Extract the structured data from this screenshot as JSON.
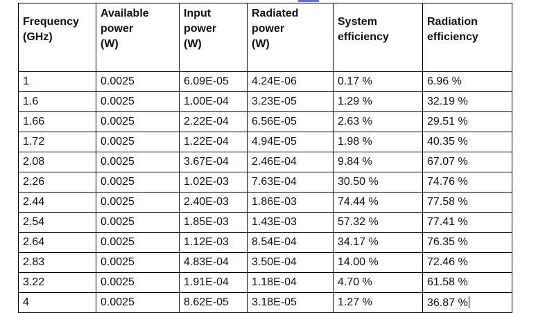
{
  "table": {
    "headers": [
      [
        "Frequency",
        "(GHz)"
      ],
      [
        "Available",
        "power",
        "(W)"
      ],
      [
        "Input",
        "power",
        "(W)"
      ],
      [
        "Radiated",
        "power",
        "(W)"
      ],
      [
        "System",
        "efficiency"
      ],
      [
        "Radiation",
        "efficiency"
      ]
    ],
    "rows": [
      [
        "1",
        "0.0025",
        "6.09E-05",
        "4.24E-06",
        "0.17 %",
        "6.96 %"
      ],
      [
        "1.6",
        "0.0025",
        "1.00E-04",
        "3.23E-05",
        "1.29 %",
        "32.19 %"
      ],
      [
        "1.66",
        "0.0025",
        "2.22E-04",
        "6.56E-05",
        "2.63 %",
        "29.51 %"
      ],
      [
        "1.72",
        "0.0025",
        "1.22E-04",
        "4.94E-05",
        "1.98 %",
        "40.35 %"
      ],
      [
        "2.08",
        "0.0025",
        "3.67E-04",
        "2.46E-04",
        "9.84 %",
        "67.07 %"
      ],
      [
        "2.26",
        "0.0025",
        "1.02E-03",
        "7.63E-04",
        "30.50 %",
        "74.76 %"
      ],
      [
        "2.44",
        "0.0025",
        "2.40E-03",
        "1.86E-03",
        "74.44 %",
        "77.58 %"
      ],
      [
        "2.54",
        "0.0025",
        "1.85E-03",
        "1.43E-03",
        "57.32 %",
        "77.41 %"
      ],
      [
        "2.64",
        "0.0025",
        "1.12E-03",
        "8.54E-04",
        "34.17 %",
        "76.35 %"
      ],
      [
        "2.83",
        "0.0025",
        "4.83E-04",
        "3.50E-04",
        "14.00 %",
        "72.46 %"
      ],
      [
        "3.22",
        "0.0025",
        "1.91E-04",
        "1.18E-04",
        "4.70 %",
        "61.58 %"
      ],
      [
        "4",
        "0.0025",
        "8.62E-05",
        "3.18E-05",
        "1.27 %",
        "36.87 %"
      ]
    ]
  }
}
